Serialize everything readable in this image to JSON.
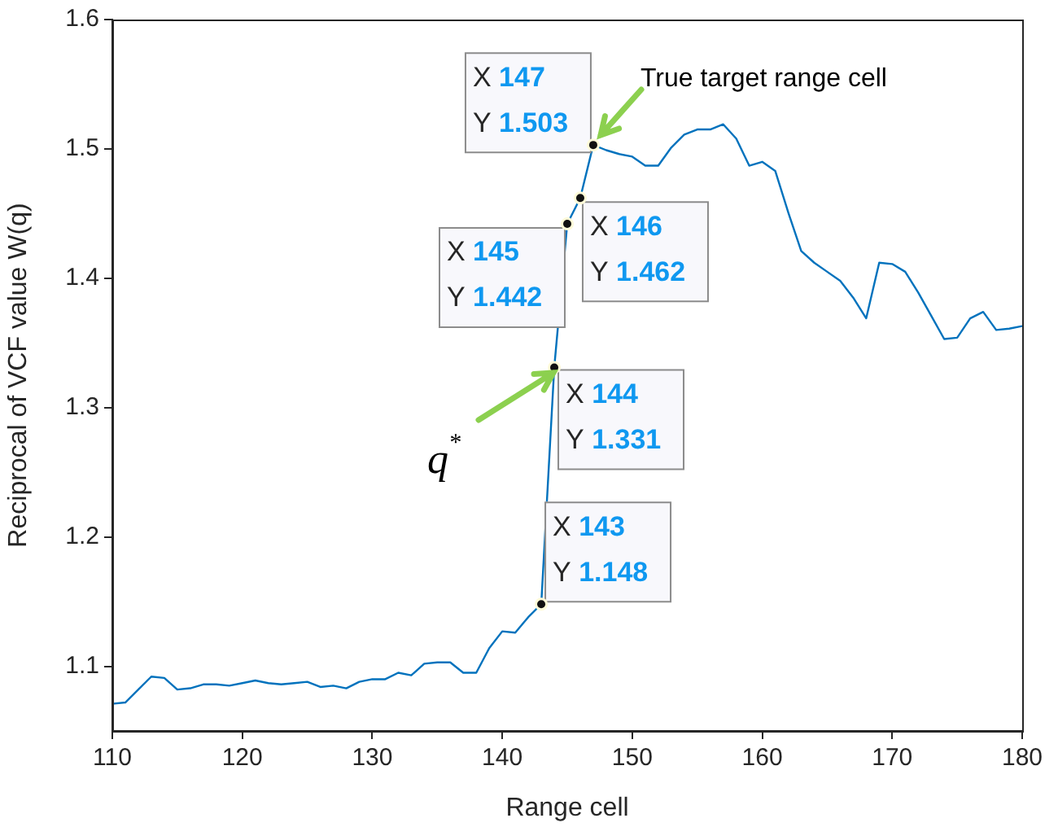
{
  "chart_data": {
    "type": "line",
    "xlabel": "Range cell",
    "ylabel": "Reciprocal of VCF value W(q)",
    "x": [
      110,
      111,
      112,
      113,
      114,
      115,
      116,
      117,
      118,
      119,
      120,
      121,
      122,
      123,
      124,
      125,
      126,
      127,
      128,
      129,
      130,
      131,
      132,
      133,
      134,
      135,
      136,
      137,
      138,
      139,
      140,
      141,
      142,
      143,
      144,
      145,
      146,
      147,
      148,
      149,
      150,
      151,
      152,
      153,
      154,
      155,
      156,
      157,
      158,
      159,
      160,
      161,
      162,
      163,
      164,
      165,
      166,
      167,
      168,
      169,
      170,
      171,
      172,
      173,
      174,
      175,
      176,
      177,
      178,
      179,
      180
    ],
    "series": [
      {
        "color": "#0072bd",
        "values": [
          1.071,
          1.072,
          1.082,
          1.092,
          1.091,
          1.082,
          1.083,
          1.086,
          1.086,
          1.085,
          1.087,
          1.089,
          1.087,
          1.086,
          1.087,
          1.088,
          1.084,
          1.085,
          1.083,
          1.088,
          1.09,
          1.09,
          1.095,
          1.093,
          1.102,
          1.103,
          1.103,
          1.095,
          1.095,
          1.114,
          1.127,
          1.126,
          1.138,
          1.148,
          1.331,
          1.442,
          1.462,
          1.503,
          1.499,
          1.496,
          1.494,
          1.487,
          1.487,
          1.501,
          1.511,
          1.515,
          1.515,
          1.519,
          1.508,
          1.487,
          1.49,
          1.483,
          1.451,
          1.421,
          1.412,
          1.405,
          1.398,
          1.385,
          1.369,
          1.412,
          1.411,
          1.405,
          1.389,
          1.371,
          1.353,
          1.354,
          1.369,
          1.374,
          1.36,
          1.361,
          1.363
        ]
      }
    ],
    "xlim": [
      110,
      180
    ],
    "xticks": [
      110,
      120,
      130,
      140,
      150,
      160,
      170,
      180
    ],
    "ylim": [
      1.05,
      1.6
    ],
    "yticks": [
      1.1,
      1.2,
      1.3,
      1.4,
      1.5,
      1.6
    ],
    "grid": false,
    "legend": false,
    "marker": "none",
    "line_style": "solid",
    "annotations": [
      {
        "text": "X 147\nY 1.503",
        "x": 147,
        "y": 1.503
      },
      {
        "text": "X 146\nY 1.462",
        "x": 146,
        "y": 1.462
      },
      {
        "text": "X 145\nY 1.442",
        "x": 145,
        "y": 1.442
      },
      {
        "text": "X 144\nY 1.331",
        "x": 144,
        "y": 1.331
      },
      {
        "text": "X 143\nY 1.148",
        "x": 143,
        "y": 1.148
      },
      {
        "text": "True target range cell",
        "x": 147,
        "y": 1.503
      },
      {
        "text": "q$^{*}$",
        "x": 144,
        "y": 1.331
      }
    ]
  }
}
